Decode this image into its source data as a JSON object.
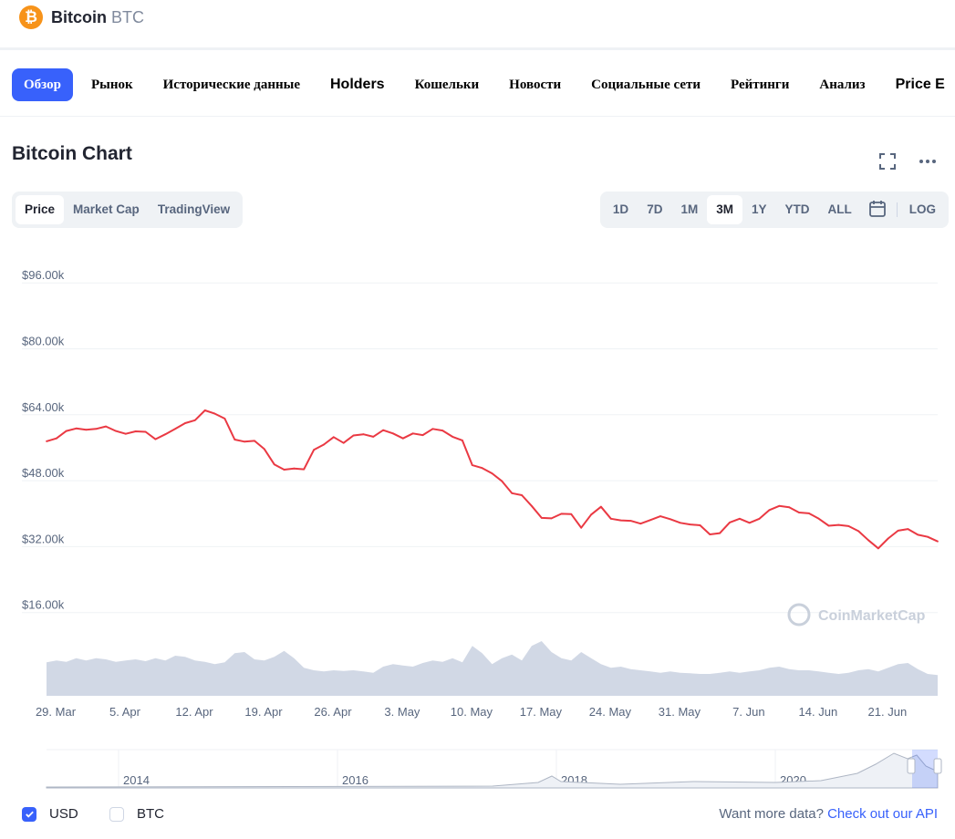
{
  "header": {
    "name": "Bitcoin",
    "symbol": "BTC",
    "logo_glyph": "₿",
    "logo_color": "#f7931a"
  },
  "nav": {
    "items": [
      {
        "label": "Обзор",
        "active": true
      },
      {
        "label": "Рынок"
      },
      {
        "label": "Исторические данные"
      },
      {
        "label": "Holders"
      },
      {
        "label": "Кошельки"
      },
      {
        "label": "Новости"
      },
      {
        "label": "Социальные сети"
      },
      {
        "label": "Рейтинги"
      },
      {
        "label": "Анализ"
      },
      {
        "label": "Price E"
      }
    ]
  },
  "chart_header": {
    "title": "Bitcoin Chart",
    "icons": [
      "fullscreen-icon",
      "more-icon"
    ]
  },
  "view_tabs": [
    "Price",
    "Market Cap",
    "TradingView"
  ],
  "view_tabs_active": "Price",
  "range_tabs": [
    "1D",
    "7D",
    "1M",
    "3M",
    "1Y",
    "YTD",
    "ALL"
  ],
  "range_active": "3M",
  "log_label": "LOG",
  "watermark": "CoinMarketCap",
  "legend": {
    "usd": "USD",
    "btc": "BTC",
    "usd_checked": true,
    "btc_checked": false
  },
  "footer": {
    "prompt": "Want more data?",
    "link": "Check out our API"
  },
  "colors": {
    "price_line": "#ea3943",
    "volume_fill": "#cfd6e4",
    "accent": "#3861fb"
  },
  "chart_data": {
    "type": "line",
    "title": "Bitcoin Chart",
    "ylim": [
      0,
      104000
    ],
    "y_ticks": [
      "$16.00k",
      "$32.00k",
      "$48.00k",
      "$64.00k",
      "$80.00k",
      "$96.00k"
    ],
    "y_tick_values": [
      16000,
      32000,
      48000,
      64000,
      80000,
      96000
    ],
    "x_ticks": [
      "29. Mar",
      "5. Apr",
      "12. Apr",
      "19. Apr",
      "26. Apr",
      "3. May",
      "10. May",
      "17. May",
      "24. May",
      "31. May",
      "7. Jun",
      "14. Jun",
      "21. Jun"
    ],
    "x_range_days": [
      0,
      90
    ],
    "x_tick_days": [
      0,
      7,
      14,
      21,
      28,
      35,
      42,
      49,
      56,
      63,
      70,
      77,
      84
    ],
    "series": [
      {
        "type": "line",
        "day": [
          0,
          1,
          2,
          3,
          4,
          5,
          6,
          7,
          8,
          9,
          10,
          11,
          12,
          13,
          14,
          15,
          16,
          17,
          18,
          19,
          20,
          21,
          22,
          23,
          24,
          25,
          26,
          27,
          28,
          29,
          30,
          31,
          32,
          33,
          34,
          35,
          36,
          37,
          38,
          39,
          40,
          41,
          42,
          43,
          44,
          45,
          46,
          47,
          48,
          49,
          50,
          51,
          52,
          53,
          54,
          55,
          56,
          57,
          58,
          59,
          60,
          61,
          62,
          63,
          64,
          65,
          66,
          67,
          68,
          69,
          70,
          71,
          72,
          73,
          74,
          75,
          76,
          77,
          78,
          79,
          80,
          81,
          82,
          83,
          84,
          85,
          86,
          87,
          88,
          89,
          90
        ],
        "values": [
          55800,
          56500,
          58300,
          58900,
          58600,
          58800,
          59400,
          58300,
          57600,
          58200,
          58100,
          56300,
          57500,
          58800,
          60200,
          60900,
          63300,
          62500,
          61300,
          56200,
          55700,
          55900,
          53900,
          50200,
          48900,
          49200,
          49000,
          53700,
          55000,
          56800,
          55400,
          57200,
          57500,
          56900,
          58500,
          57700,
          56500,
          57700,
          57300,
          58800,
          58400,
          56900,
          56000,
          50000,
          49300,
          48000,
          46100,
          43200,
          42700,
          40100,
          37200,
          37100,
          38200,
          38100,
          34800,
          38000,
          39900,
          37000,
          36600,
          36500,
          35800,
          36700,
          37600,
          36900,
          36000,
          35600,
          35400,
          33200,
          33500,
          36100,
          37000,
          36000,
          37000,
          39100,
          40100,
          39800,
          38500,
          38300,
          37000,
          35300,
          35500,
          35200,
          34000,
          31800,
          29800,
          32200,
          34100,
          34500,
          33100,
          32600,
          31500
        ]
      },
      {
        "type": "volume",
        "day": [
          0,
          1,
          2,
          3,
          4,
          5,
          6,
          7,
          8,
          9,
          10,
          11,
          12,
          13,
          14,
          15,
          16,
          17,
          18,
          19,
          20,
          21,
          22,
          23,
          24,
          25,
          26,
          27,
          28,
          29,
          30,
          31,
          32,
          33,
          34,
          35,
          36,
          37,
          38,
          39,
          40,
          41,
          42,
          43,
          44,
          45,
          46,
          47,
          48,
          49,
          50,
          51,
          52,
          53,
          54,
          55,
          56,
          57,
          58,
          59,
          60,
          61,
          62,
          63,
          64,
          65,
          66,
          67,
          68,
          69,
          70,
          71,
          72,
          73,
          74,
          75,
          76,
          77,
          78,
          79,
          80,
          81,
          82,
          83,
          84,
          85,
          86,
          87,
          88,
          89,
          90
        ],
        "values": [
          55,
          58,
          56,
          62,
          58,
          62,
          60,
          56,
          58,
          60,
          57,
          62,
          58,
          66,
          64,
          58,
          56,
          52,
          55,
          70,
          72,
          60,
          58,
          64,
          74,
          62,
          46,
          42,
          40,
          42,
          41,
          42,
          40,
          38,
          48,
          52,
          50,
          48,
          54,
          58,
          56,
          62,
          55,
          82,
          70,
          52,
          62,
          68,
          58,
          82,
          90,
          72,
          62,
          58,
          72,
          62,
          52,
          46,
          48,
          44,
          42,
          40,
          38,
          40,
          38,
          37,
          36,
          36,
          38,
          40,
          38,
          40,
          42,
          46,
          48,
          44,
          42,
          42,
          40,
          38,
          36,
          38,
          42,
          44,
          40,
          46,
          52,
          54,
          44,
          36,
          34
        ]
      }
    ]
  },
  "navigator": {
    "year_labels": [
      "2014",
      "2016",
      "2018",
      "2020"
    ]
  }
}
